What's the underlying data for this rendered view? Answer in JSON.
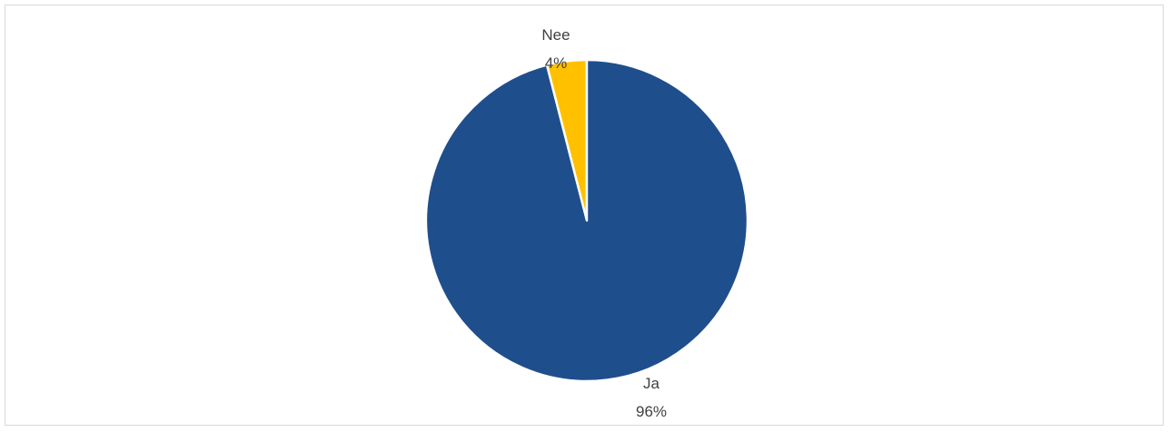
{
  "chart_data": {
    "type": "pie",
    "title": "",
    "categories": [
      "Nee",
      "Ja"
    ],
    "values": [
      4,
      96
    ],
    "value_labels": [
      "4%",
      "96%"
    ],
    "colors": [
      "#FFC000",
      "#1F4E8C"
    ],
    "start_angle_deg": 0,
    "direction": "counterclockwise",
    "legend": "none"
  }
}
